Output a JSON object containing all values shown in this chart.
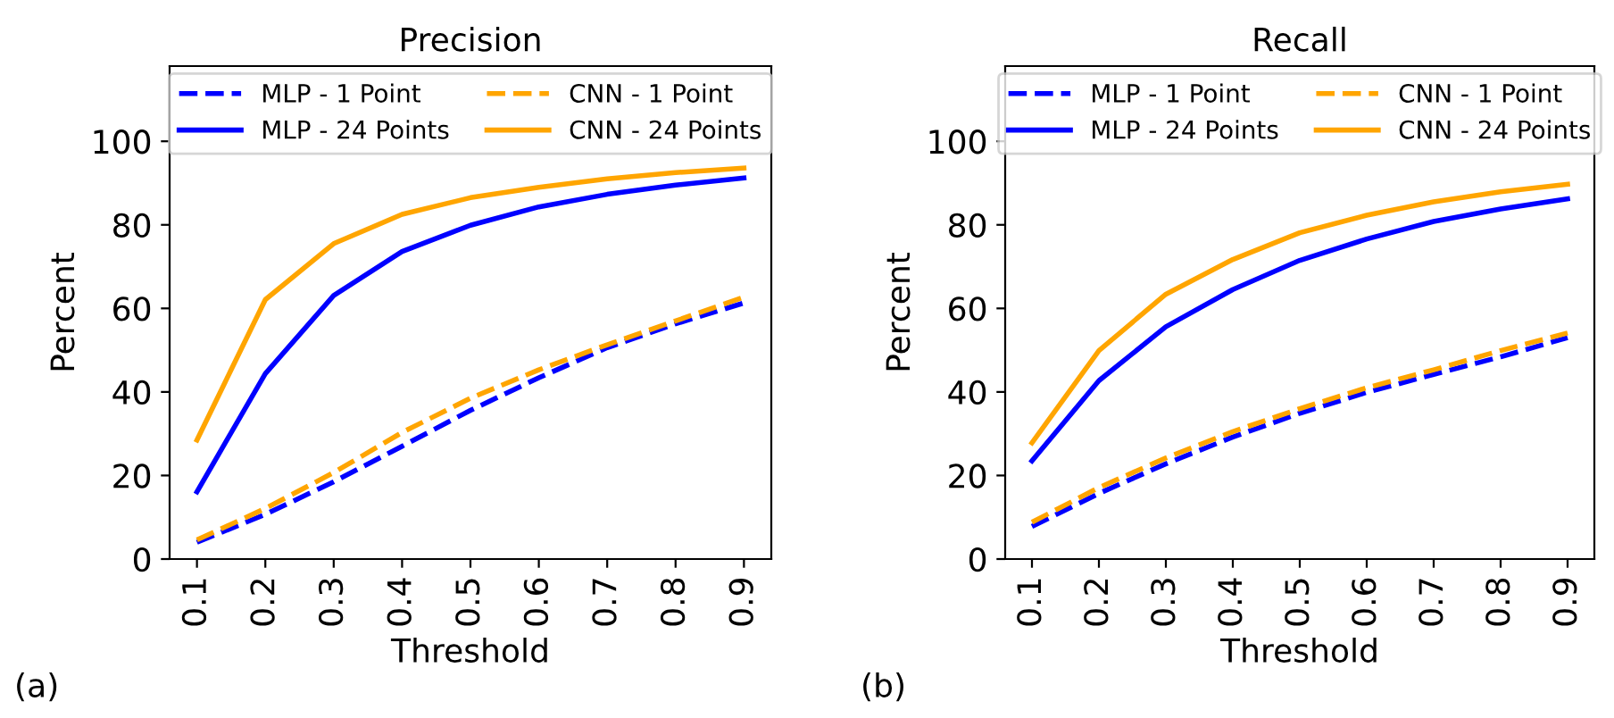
{
  "chart_data": [
    {
      "type": "line",
      "title": "Precision",
      "xlabel": "Threshold",
      "ylabel": "Percent",
      "annotations": [
        "(a)"
      ],
      "categories": [
        "0.1",
        "0.2",
        "0.3",
        "0.4",
        "0.5",
        "0.6",
        "0.7",
        "0.8",
        "0.9"
      ],
      "ylim": [
        0,
        118
      ],
      "yticks": [
        0,
        20,
        40,
        60,
        80,
        100
      ],
      "legend": "top",
      "grid": false,
      "series": [
        {
          "name": "MLP - 1 Point",
          "color": "#0000ff",
          "line_style": "dashed",
          "values": [
            4,
            10.7,
            18.5,
            27,
            35.6,
            43.4,
            50.6,
            56.3,
            61.3
          ]
        },
        {
          "name": "MLP - 24 Points",
          "color": "#0000ff",
          "line_style": "solid",
          "values": [
            16.1,
            44.4,
            63.1,
            73.6,
            79.9,
            84.3,
            87.3,
            89.5,
            91.2
          ]
        },
        {
          "name": "CNN - 1 Point",
          "color": "#ffa500",
          "line_style": "dashed",
          "values": [
            4.6,
            12.1,
            20.7,
            30.3,
            38.5,
            45.3,
            51.3,
            57,
            62.7
          ]
        },
        {
          "name": "CNN - 24 Points",
          "color": "#ffa500",
          "line_style": "solid",
          "values": [
            28.5,
            62.1,
            75.5,
            82.5,
            86.5,
            89,
            91,
            92.5,
            93.6
          ]
        }
      ]
    },
    {
      "type": "line",
      "title": "Recall",
      "xlabel": "Threshold",
      "ylabel": "Percent",
      "annotations": [
        "(b)"
      ],
      "categories": [
        "0.1",
        "0.2",
        "0.3",
        "0.4",
        "0.5",
        "0.6",
        "0.7",
        "0.8",
        "0.9"
      ],
      "ylim": [
        0,
        118
      ],
      "yticks": [
        0,
        20,
        40,
        60,
        80,
        100
      ],
      "legend": "top",
      "grid": false,
      "series": [
        {
          "name": "MLP - 1 Point",
          "color": "#0000ff",
          "line_style": "dashed",
          "values": [
            7.8,
            15.7,
            22.8,
            29.2,
            34.9,
            39.9,
            44.2,
            48.4,
            53
          ]
        },
        {
          "name": "MLP - 24 Points",
          "color": "#0000ff",
          "line_style": "solid",
          "values": [
            23.5,
            42.7,
            55.6,
            64.5,
            71.5,
            76.6,
            80.8,
            83.8,
            86.2
          ]
        },
        {
          "name": "CNN - 1 Point",
          "color": "#ffa500",
          "line_style": "dashed",
          "values": [
            8.8,
            17.1,
            24.2,
            30.5,
            36,
            41,
            45.3,
            49.9,
            54.1
          ]
        },
        {
          "name": "CNN - 24 Points",
          "color": "#ffa500",
          "line_style": "solid",
          "values": [
            27.8,
            49.9,
            63.4,
            71.7,
            78.1,
            82.3,
            85.5,
            87.9,
            89.7
          ]
        }
      ]
    }
  ]
}
